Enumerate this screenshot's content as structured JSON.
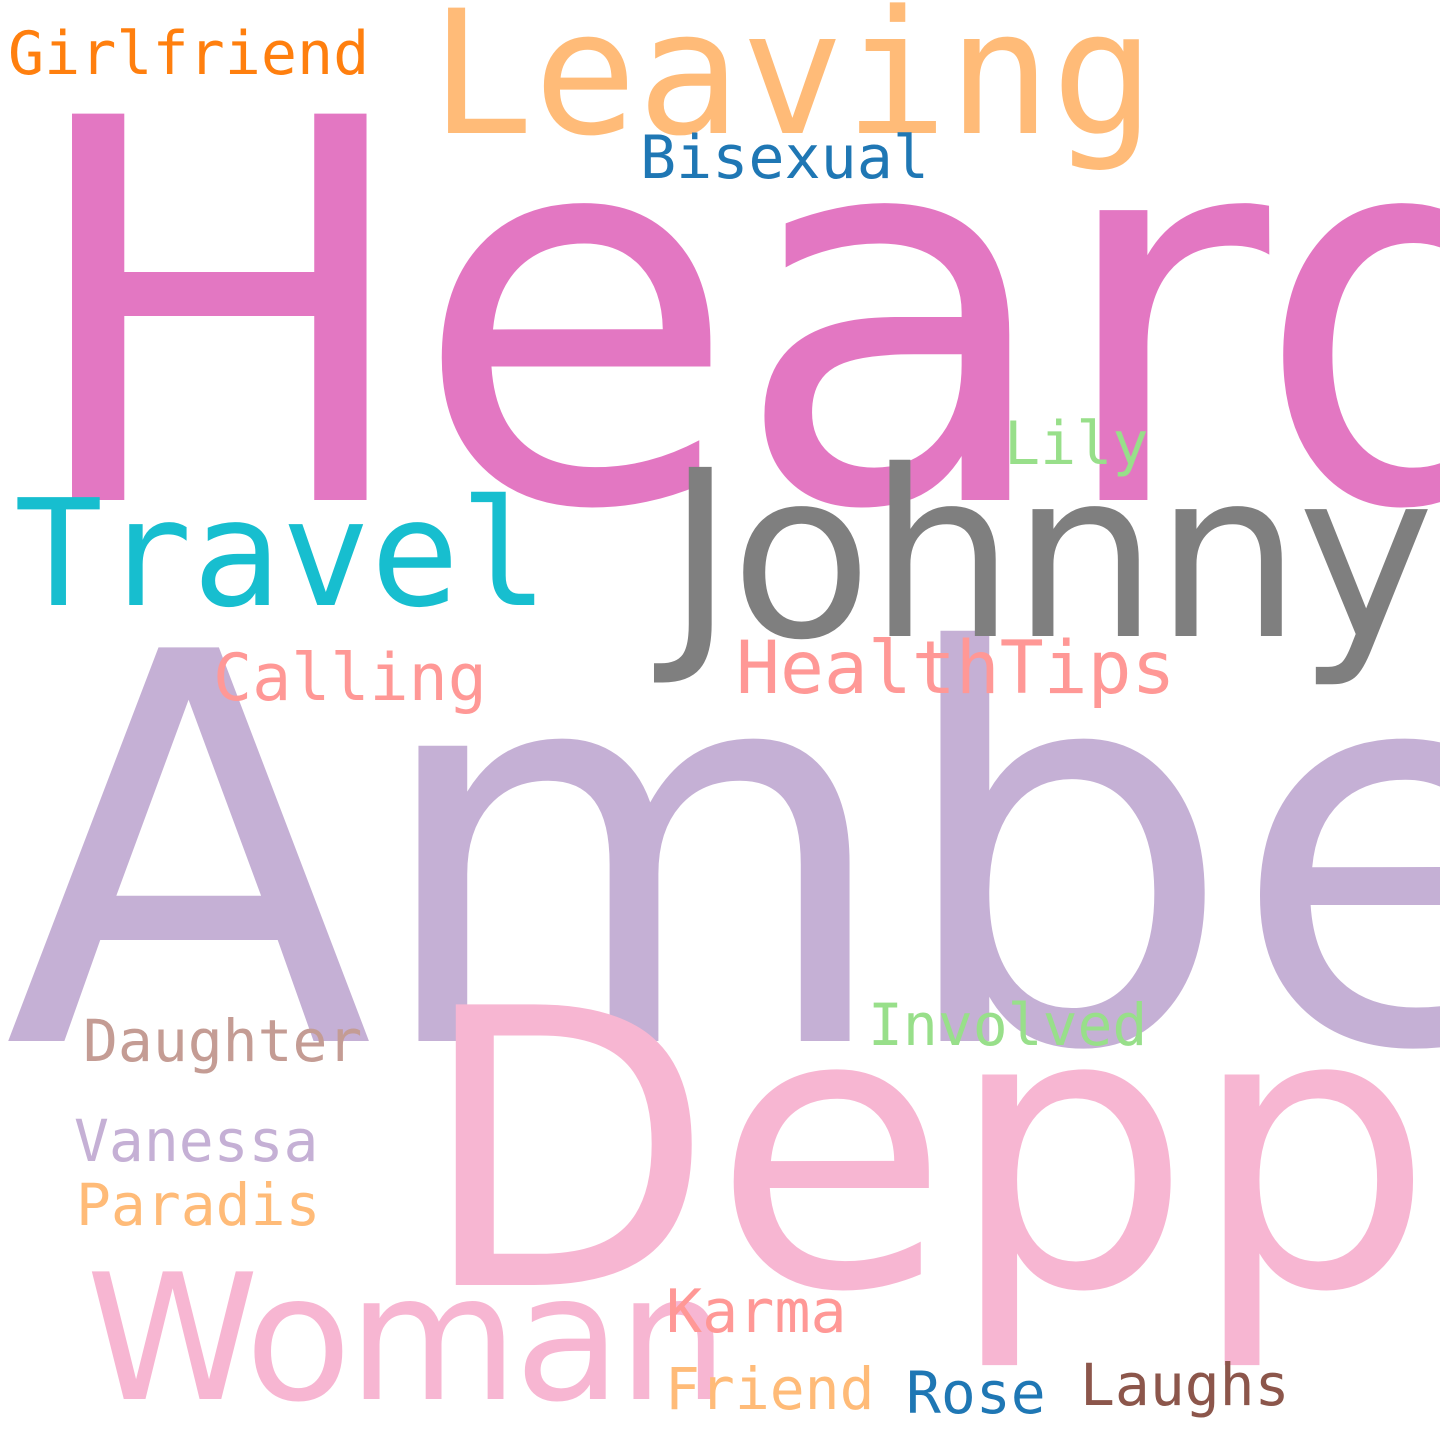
{
  "words": [
    {
      "text": "Heard",
      "color": "#e377c2"
    },
    {
      "text": "Amber",
      "color": "#c5b0d5"
    },
    {
      "text": "Depp",
      "color": "#f7b6d2"
    },
    {
      "text": "Johnny",
      "color": "#7f7f7f"
    },
    {
      "text": "Leaving",
      "color": "#ffbb78"
    },
    {
      "text": "Travel",
      "color": "#17becf"
    },
    {
      "text": "Woman",
      "color": "#f7b6d2"
    },
    {
      "text": "HealthTips",
      "color": "#ff9896"
    },
    {
      "text": "Calling",
      "color": "#ff9896"
    },
    {
      "text": "Girlfriend",
      "color": "#ff7f0e"
    },
    {
      "text": "Bisexual",
      "color": "#1f77b4"
    },
    {
      "text": "Lily",
      "color": "#98df8a"
    },
    {
      "text": "Involved",
      "color": "#98df8a"
    },
    {
      "text": "Daughter",
      "color": "#c49c94"
    },
    {
      "text": "Vanessa",
      "color": "#c5b0d5"
    },
    {
      "text": "Paradis",
      "color": "#ffbb78"
    },
    {
      "text": "Karma",
      "color": "#ff9896"
    },
    {
      "text": "Friend",
      "color": "#ffbb78"
    },
    {
      "text": "Rose",
      "color": "#1f77b4"
    },
    {
      "text": "Laughs",
      "color": "#8c564b"
    }
  ]
}
